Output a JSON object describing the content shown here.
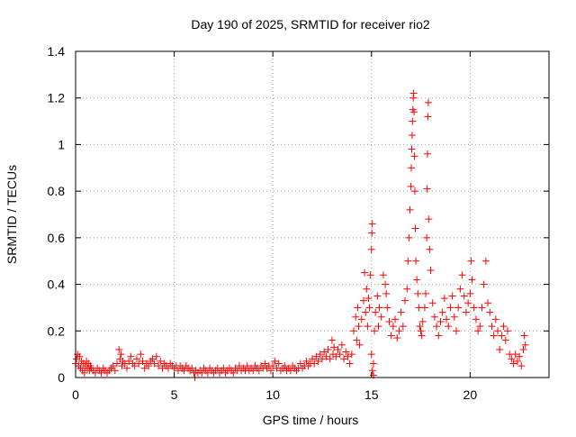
{
  "chart_data": {
    "type": "scatter",
    "title": "Day 190 of 2025, SRMTID for receiver rio2",
    "xlabel": "GPS time / hours",
    "ylabel": "SRMTID / TECUs",
    "xlim": [
      0,
      24
    ],
    "ylim": [
      0,
      1.4
    ],
    "xticks": [
      0,
      5,
      10,
      15,
      20
    ],
    "xtick_labels": [
      "0",
      "5",
      "10",
      "15",
      "20"
    ],
    "yticks": [
      0,
      0.2,
      0.4,
      0.6,
      0.8,
      1.0,
      1.2,
      1.4
    ],
    "ytick_labels": [
      "0",
      "0.2",
      "0.4",
      "0.6",
      "0.8",
      "1",
      "1.2",
      "1.4"
    ],
    "grid": true,
    "marker": "+",
    "color": "#ff0000",
    "series": [
      {
        "name": "SRMTID",
        "points": [
          [
            0.0,
            0.06
          ],
          [
            0.05,
            0.08
          ],
          [
            0.1,
            0.1
          ],
          [
            0.15,
            0.05
          ],
          [
            0.2,
            0.09
          ],
          [
            0.25,
            0.04
          ],
          [
            0.3,
            0.07
          ],
          [
            0.35,
            0.03
          ],
          [
            0.4,
            0.06
          ],
          [
            0.45,
            0.02
          ],
          [
            0.5,
            0.05
          ],
          [
            0.55,
            0.07
          ],
          [
            0.6,
            0.04
          ],
          [
            0.65,
            0.06
          ],
          [
            0.7,
            0.03
          ],
          [
            0.75,
            0.05
          ],
          [
            0.8,
            0.04
          ],
          [
            0.9,
            0.03
          ],
          [
            1.0,
            0.02
          ],
          [
            1.1,
            0.04
          ],
          [
            1.2,
            0.03
          ],
          [
            1.3,
            0.02
          ],
          [
            1.4,
            0.04
          ],
          [
            1.5,
            0.03
          ],
          [
            1.6,
            0.02
          ],
          [
            1.7,
            0.03
          ],
          [
            1.8,
            0.04
          ],
          [
            1.9,
            0.05
          ],
          [
            2.0,
            0.03
          ],
          [
            2.1,
            0.06
          ],
          [
            2.2,
            0.12
          ],
          [
            2.25,
            0.08
          ],
          [
            2.3,
            0.1
          ],
          [
            2.35,
            0.05
          ],
          [
            2.4,
            0.07
          ],
          [
            2.5,
            0.06
          ],
          [
            2.6,
            0.04
          ],
          [
            2.7,
            0.07
          ],
          [
            2.8,
            0.09
          ],
          [
            2.9,
            0.06
          ],
          [
            3.0,
            0.05
          ],
          [
            3.1,
            0.08
          ],
          [
            3.2,
            0.06
          ],
          [
            3.3,
            0.1
          ],
          [
            3.4,
            0.07
          ],
          [
            3.5,
            0.04
          ],
          [
            3.6,
            0.06
          ],
          [
            3.7,
            0.05
          ],
          [
            3.8,
            0.07
          ],
          [
            3.9,
            0.08
          ],
          [
            4.0,
            0.06
          ],
          [
            4.1,
            0.09
          ],
          [
            4.2,
            0.05
          ],
          [
            4.3,
            0.07
          ],
          [
            4.4,
            0.04
          ],
          [
            4.5,
            0.06
          ],
          [
            4.6,
            0.05
          ],
          [
            4.7,
            0.04
          ],
          [
            4.8,
            0.06
          ],
          [
            4.9,
            0.05
          ],
          [
            5.0,
            0.04
          ],
          [
            5.1,
            0.05
          ],
          [
            5.2,
            0.03
          ],
          [
            5.3,
            0.05
          ],
          [
            5.4,
            0.04
          ],
          [
            5.5,
            0.03
          ],
          [
            5.6,
            0.05
          ],
          [
            5.7,
            0.04
          ],
          [
            5.8,
            0.03
          ],
          [
            5.9,
            0.04
          ],
          [
            6.0,
            0.02
          ],
          [
            6.05,
            0.0
          ],
          [
            6.1,
            0.03
          ],
          [
            6.2,
            0.02
          ],
          [
            6.3,
            0.03
          ],
          [
            6.4,
            0.02
          ],
          [
            6.5,
            0.04
          ],
          [
            6.6,
            0.03
          ],
          [
            6.7,
            0.02
          ],
          [
            6.8,
            0.04
          ],
          [
            6.9,
            0.03
          ],
          [
            7.0,
            0.02
          ],
          [
            7.1,
            0.03
          ],
          [
            7.2,
            0.04
          ],
          [
            7.3,
            0.02
          ],
          [
            7.4,
            0.03
          ],
          [
            7.5,
            0.04
          ],
          [
            7.6,
            0.02
          ],
          [
            7.7,
            0.03
          ],
          [
            7.8,
            0.04
          ],
          [
            7.9,
            0.03
          ],
          [
            8.0,
            0.02
          ],
          [
            8.1,
            0.04
          ],
          [
            8.2,
            0.03
          ],
          [
            8.3,
            0.05
          ],
          [
            8.4,
            0.03
          ],
          [
            8.5,
            0.04
          ],
          [
            8.6,
            0.03
          ],
          [
            8.7,
            0.05
          ],
          [
            8.8,
            0.03
          ],
          [
            8.9,
            0.04
          ],
          [
            9.0,
            0.03
          ],
          [
            9.1,
            0.05
          ],
          [
            9.2,
            0.04
          ],
          [
            9.3,
            0.03
          ],
          [
            9.4,
            0.05
          ],
          [
            9.5,
            0.04
          ],
          [
            9.6,
            0.06
          ],
          [
            9.7,
            0.04
          ],
          [
            9.8,
            0.05
          ],
          [
            9.9,
            0.03
          ],
          [
            10.0,
            0.05
          ],
          [
            10.1,
            0.07
          ],
          [
            10.2,
            0.04
          ],
          [
            10.3,
            0.06
          ],
          [
            10.4,
            0.03
          ],
          [
            10.5,
            0.04
          ],
          [
            10.6,
            0.05
          ],
          [
            10.7,
            0.03
          ],
          [
            10.8,
            0.04
          ],
          [
            10.9,
            0.03
          ],
          [
            11.0,
            0.05
          ],
          [
            11.1,
            0.04
          ],
          [
            11.2,
            0.03
          ],
          [
            11.3,
            0.04
          ],
          [
            11.4,
            0.06
          ],
          [
            11.5,
            0.04
          ],
          [
            11.6,
            0.05
          ],
          [
            11.7,
            0.07
          ],
          [
            11.8,
            0.05
          ],
          [
            11.9,
            0.06
          ],
          [
            12.0,
            0.08
          ],
          [
            12.1,
            0.06
          ],
          [
            12.2,
            0.09
          ],
          [
            12.3,
            0.07
          ],
          [
            12.4,
            0.1
          ],
          [
            12.5,
            0.08
          ],
          [
            12.6,
            0.11
          ],
          [
            12.7,
            0.09
          ],
          [
            12.8,
            0.12
          ],
          [
            12.9,
            0.08
          ],
          [
            13.0,
            0.16
          ],
          [
            13.05,
            0.1
          ],
          [
            13.1,
            0.13
          ],
          [
            13.2,
            0.09
          ],
          [
            13.3,
            0.12
          ],
          [
            13.4,
            0.1
          ],
          [
            13.5,
            0.14
          ],
          [
            13.6,
            0.08
          ],
          [
            13.7,
            0.11
          ],
          [
            13.8,
            0.09
          ],
          [
            13.9,
            0.06
          ],
          [
            14.0,
            0.1
          ],
          [
            14.1,
            0.2
          ],
          [
            14.2,
            0.26
          ],
          [
            14.25,
            0.16
          ],
          [
            14.3,
            0.3
          ],
          [
            14.35,
            0.22
          ],
          [
            14.4,
            0.14
          ],
          [
            14.5,
            0.25
          ],
          [
            14.6,
            0.33
          ],
          [
            14.65,
            0.45
          ],
          [
            14.7,
            0.28
          ],
          [
            14.75,
            0.38
          ],
          [
            14.8,
            0.22
          ],
          [
            14.85,
            0.34
          ],
          [
            14.9,
            0.3
          ],
          [
            14.95,
            0.44
          ],
          [
            15.0,
            0.55
          ],
          [
            15.02,
            0.62
          ],
          [
            15.04,
            0.66
          ],
          [
            15.0,
            0.1
          ],
          [
            15.05,
            0.03
          ],
          [
            15.1,
            0.01
          ],
          [
            15.1,
            0.06
          ],
          [
            15.15,
            0.2
          ],
          [
            15.2,
            0.28
          ],
          [
            15.3,
            0.35
          ],
          [
            15.35,
            0.22
          ],
          [
            15.4,
            0.3
          ],
          [
            15.5,
            0.26
          ],
          [
            15.6,
            0.44
          ],
          [
            15.7,
            0.4
          ],
          [
            15.75,
            0.36
          ],
          [
            15.8,
            0.3
          ],
          [
            15.9,
            0.24
          ],
          [
            16.0,
            0.18
          ],
          [
            16.1,
            0.22
          ],
          [
            16.2,
            0.25
          ],
          [
            16.3,
            0.17
          ],
          [
            16.4,
            0.2
          ],
          [
            16.5,
            0.28
          ],
          [
            16.6,
            0.22
          ],
          [
            16.7,
            0.33
          ],
          [
            16.8,
            0.38
          ],
          [
            16.85,
            0.5
          ],
          [
            16.9,
            0.6
          ],
          [
            16.95,
            0.72
          ],
          [
            17.0,
            0.82
          ],
          [
            17.02,
            0.9
          ],
          [
            17.04,
            0.98
          ],
          [
            17.06,
            1.04
          ],
          [
            17.08,
            1.1
          ],
          [
            17.1,
            1.15
          ],
          [
            17.12,
            1.2
          ],
          [
            17.14,
            1.22
          ],
          [
            17.16,
            1.14
          ],
          [
            17.18,
            0.95
          ],
          [
            17.2,
            0.8
          ],
          [
            17.22,
            0.64
          ],
          [
            17.25,
            0.5
          ],
          [
            17.3,
            0.42
          ],
          [
            17.35,
            0.36
          ],
          [
            17.4,
            0.3
          ],
          [
            17.45,
            0.22
          ],
          [
            17.5,
            0.2
          ],
          [
            17.55,
            0.18
          ],
          [
            17.6,
            0.24
          ],
          [
            17.7,
            0.3
          ],
          [
            17.75,
            0.36
          ],
          [
            17.8,
            0.6
          ],
          [
            17.82,
            0.81
          ],
          [
            17.84,
            0.96
          ],
          [
            17.86,
            1.12
          ],
          [
            17.88,
            1.18
          ],
          [
            17.9,
            0.68
          ],
          [
            17.95,
            0.55
          ],
          [
            18.0,
            0.46
          ],
          [
            18.1,
            0.32
          ],
          [
            18.2,
            0.26
          ],
          [
            18.3,
            0.22
          ],
          [
            18.4,
            0.18
          ],
          [
            18.5,
            0.24
          ],
          [
            18.6,
            0.28
          ],
          [
            18.7,
            0.34
          ],
          [
            18.8,
            0.25
          ],
          [
            18.9,
            0.22
          ],
          [
            19.0,
            0.3
          ],
          [
            19.1,
            0.35
          ],
          [
            19.2,
            0.26
          ],
          [
            19.3,
            0.2
          ],
          [
            19.4,
            0.3
          ],
          [
            19.5,
            0.38
          ],
          [
            19.6,
            0.44
          ],
          [
            19.7,
            0.35
          ],
          [
            19.8,
            0.28
          ],
          [
            19.9,
            0.32
          ],
          [
            20.0,
            0.36
          ],
          [
            20.05,
            0.5
          ],
          [
            20.1,
            0.42
          ],
          [
            20.2,
            0.3
          ],
          [
            20.3,
            0.25
          ],
          [
            20.4,
            0.2
          ],
          [
            20.5,
            0.22
          ],
          [
            20.6,
            0.3
          ],
          [
            20.7,
            0.4
          ],
          [
            20.8,
            0.5
          ],
          [
            20.9,
            0.32
          ],
          [
            21.0,
            0.28
          ],
          [
            21.1,
            0.22
          ],
          [
            21.2,
            0.18
          ],
          [
            21.3,
            0.25
          ],
          [
            21.4,
            0.2
          ],
          [
            21.5,
            0.12
          ],
          [
            21.6,
            0.18
          ],
          [
            21.7,
            0.22
          ],
          [
            21.8,
            0.16
          ],
          [
            21.9,
            0.2
          ],
          [
            22.0,
            0.1
          ],
          [
            22.1,
            0.08
          ],
          [
            22.2,
            0.06
          ],
          [
            22.3,
            0.1
          ],
          [
            22.4,
            0.07
          ],
          [
            22.5,
            0.09
          ],
          [
            22.6,
            0.05
          ],
          [
            22.7,
            0.12
          ],
          [
            22.75,
            0.18
          ],
          [
            22.8,
            0.14
          ]
        ]
      }
    ]
  }
}
